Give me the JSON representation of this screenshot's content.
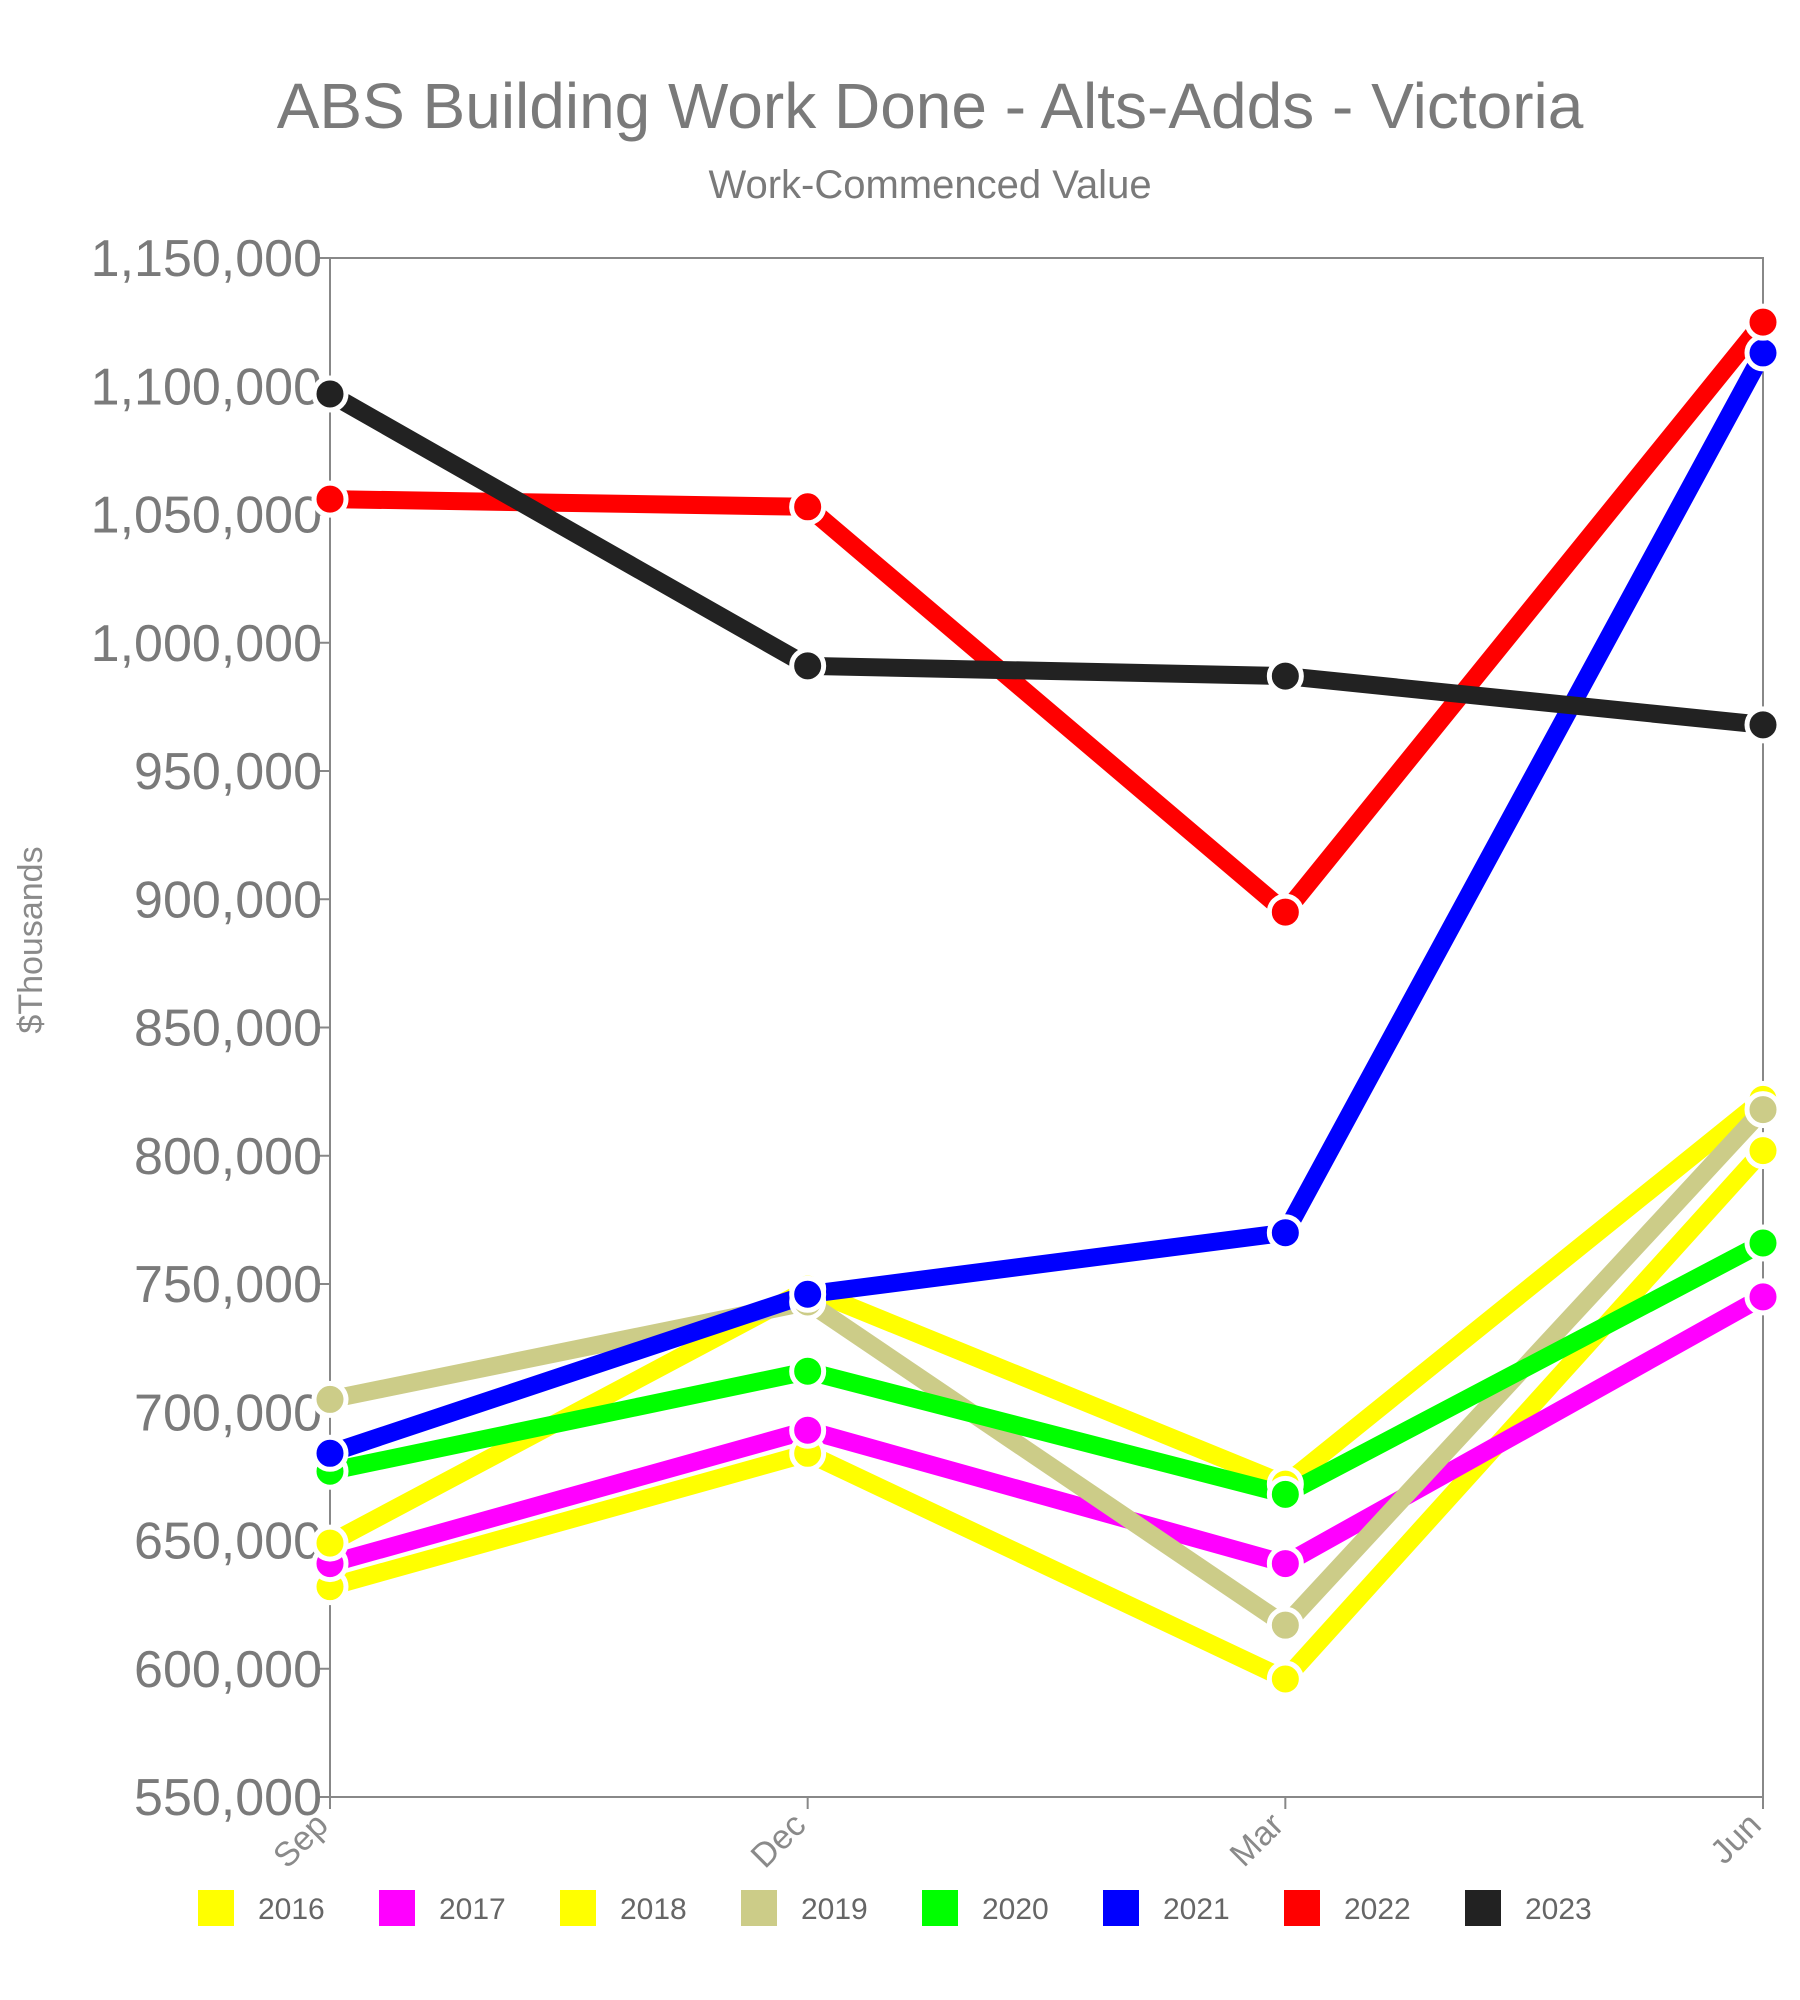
{
  "chart_data": {
    "type": "line",
    "title": "ABS Building Work Done - Alts-Adds - Victoria",
    "subtitle": "Work-Commenced Value",
    "ylabel": "$Thousands",
    "xlabel": "",
    "categories": [
      "Sep",
      "Dec",
      "Mar",
      "Jun"
    ],
    "ylim": [
      550000,
      1150000
    ],
    "yticks": [
      550000,
      600000,
      650000,
      700000,
      750000,
      800000,
      850000,
      900000,
      950000,
      1000000,
      1050000,
      1100000,
      1150000
    ],
    "ytick_labels": [
      "550,000",
      "600,000",
      "650,000",
      "700,000",
      "750,000",
      "800,000",
      "850,000",
      "900,000",
      "950,000",
      "1,000,000",
      "1,050,000",
      "1,100,000",
      "1,150,000"
    ],
    "grid": false,
    "legend_position": "bottom",
    "series": [
      {
        "name": "2016",
        "color": "#ffff00",
        "values": [
          632000,
          684000,
          596000,
          802000
        ]
      },
      {
        "name": "2017",
        "color": "#ff00ff",
        "values": [
          641000,
          693000,
          641000,
          745000
        ]
      },
      {
        "name": "2018",
        "color": "#ffff00",
        "values": [
          649000,
          748000,
          672000,
          822000
        ]
      },
      {
        "name": "2019",
        "color": "#cccc88",
        "values": [
          705000,
          743000,
          617000,
          818000
        ]
      },
      {
        "name": "2020",
        "color": "#00ff00",
        "values": [
          677000,
          716000,
          668000,
          766000
        ]
      },
      {
        "name": "2021",
        "color": "#0000ff",
        "values": [
          684000,
          746000,
          770000,
          1113000
        ]
      },
      {
        "name": "2022",
        "color": "#ff0000",
        "values": [
          1056000,
          1053000,
          895000,
          1125000
        ]
      },
      {
        "name": "2023",
        "color": "#222222",
        "values": [
          1097000,
          991000,
          987000,
          968000
        ]
      }
    ]
  }
}
